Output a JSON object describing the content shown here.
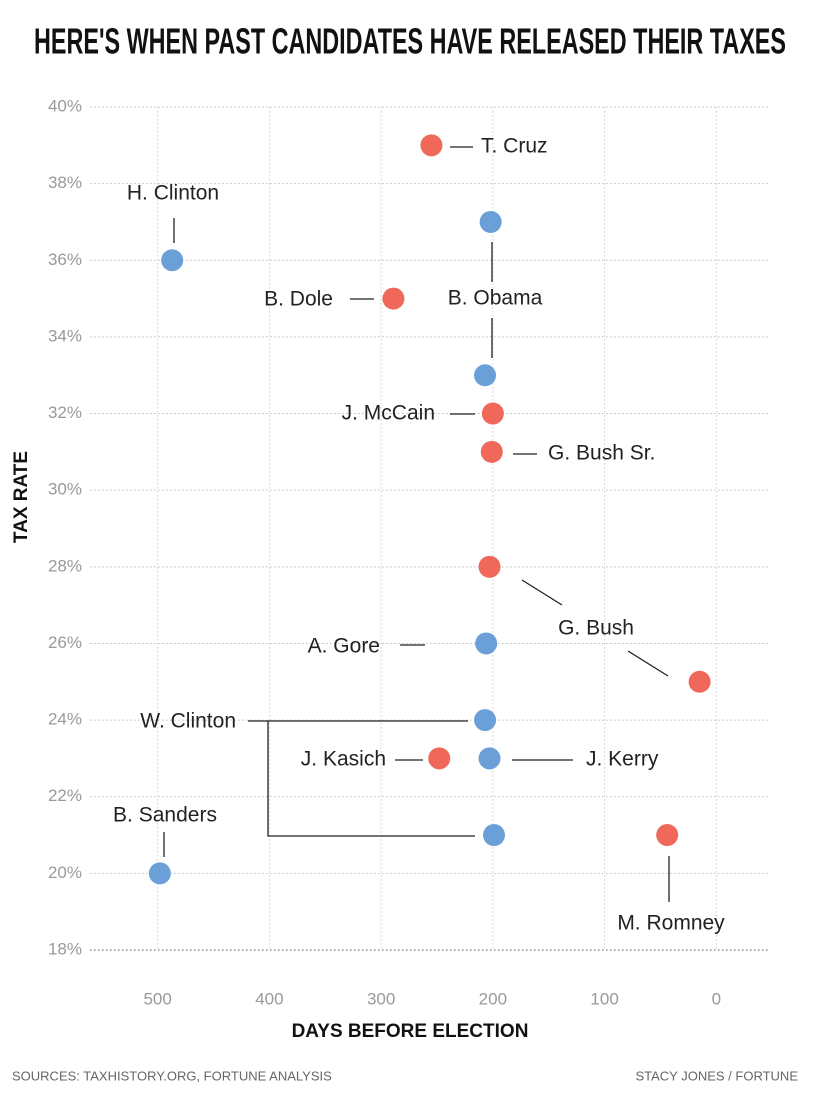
{
  "chart_data": {
    "type": "scatter",
    "title": "HERE'S WHEN PAST CANDIDATES HAVE RELEASED THEIR TAXES",
    "x_label": "DAYS BEFORE ELECTION",
    "y_label": "TAX RATE",
    "xlim": [
      565,
      -48
    ],
    "ylim": [
      18,
      40
    ],
    "xticks": [
      500,
      400,
      300,
      200,
      100,
      0
    ],
    "yticks": [
      {
        "value": 18,
        "label": "18%"
      },
      {
        "value": 20,
        "label": "20%"
      },
      {
        "value": 22,
        "label": "22%"
      },
      {
        "value": 24,
        "label": "24%"
      },
      {
        "value": 26,
        "label": "26%"
      },
      {
        "value": 28,
        "label": "28%"
      },
      {
        "value": 30,
        "label": "30%"
      },
      {
        "value": 32,
        "label": "32%"
      },
      {
        "value": 34,
        "label": "34%"
      },
      {
        "value": 36,
        "label": "36%"
      },
      {
        "value": 38,
        "label": "38%"
      },
      {
        "value": 40,
        "label": "40%"
      }
    ],
    "grid": true,
    "series": [
      {
        "name": "T. Cruz",
        "color": "#f0685a",
        "x": [
          255
        ],
        "values": [
          39
        ]
      },
      {
        "name": "H. Clinton",
        "color": "#6a9fd8",
        "x": [
          487
        ],
        "values": [
          36
        ]
      },
      {
        "name": "B. Obama",
        "color": "#6a9fd8",
        "x": [
          202,
          207
        ],
        "values": [
          37,
          33
        ]
      },
      {
        "name": "B. Dole",
        "color": "#f0685a",
        "x": [
          289
        ],
        "values": [
          35
        ]
      },
      {
        "name": "J. McCain",
        "color": "#f0685a",
        "x": [
          200
        ],
        "values": [
          32
        ]
      },
      {
        "name": "G. Bush Sr.",
        "color": "#f0685a",
        "x": [
          201
        ],
        "values": [
          31
        ]
      },
      {
        "name": "G. Bush",
        "color": "#f0685a",
        "x": [
          203,
          15
        ],
        "values": [
          28,
          25
        ]
      },
      {
        "name": "A. Gore",
        "color": "#6a9fd8",
        "x": [
          206
        ],
        "values": [
          26
        ]
      },
      {
        "name": "W. Clinton",
        "color": "#6a9fd8",
        "x": [
          207,
          199
        ],
        "values": [
          24,
          21
        ]
      },
      {
        "name": "J. Kasich",
        "color": "#f0685a",
        "x": [
          248
        ],
        "values": [
          23
        ]
      },
      {
        "name": "J. Kerry",
        "color": "#6a9fd8",
        "x": [
          203
        ],
        "values": [
          23
        ]
      },
      {
        "name": "B. Sanders",
        "color": "#6a9fd8",
        "x": [
          498
        ],
        "values": [
          20
        ]
      },
      {
        "name": "M. Romney",
        "color": "#f0685a",
        "x": [
          44
        ],
        "values": [
          21
        ]
      }
    ],
    "source": "SOURCES: TAXHISTORY.ORG, FORTUNE ANALYSIS",
    "credit": "STACY JONES / FORTUNE"
  }
}
